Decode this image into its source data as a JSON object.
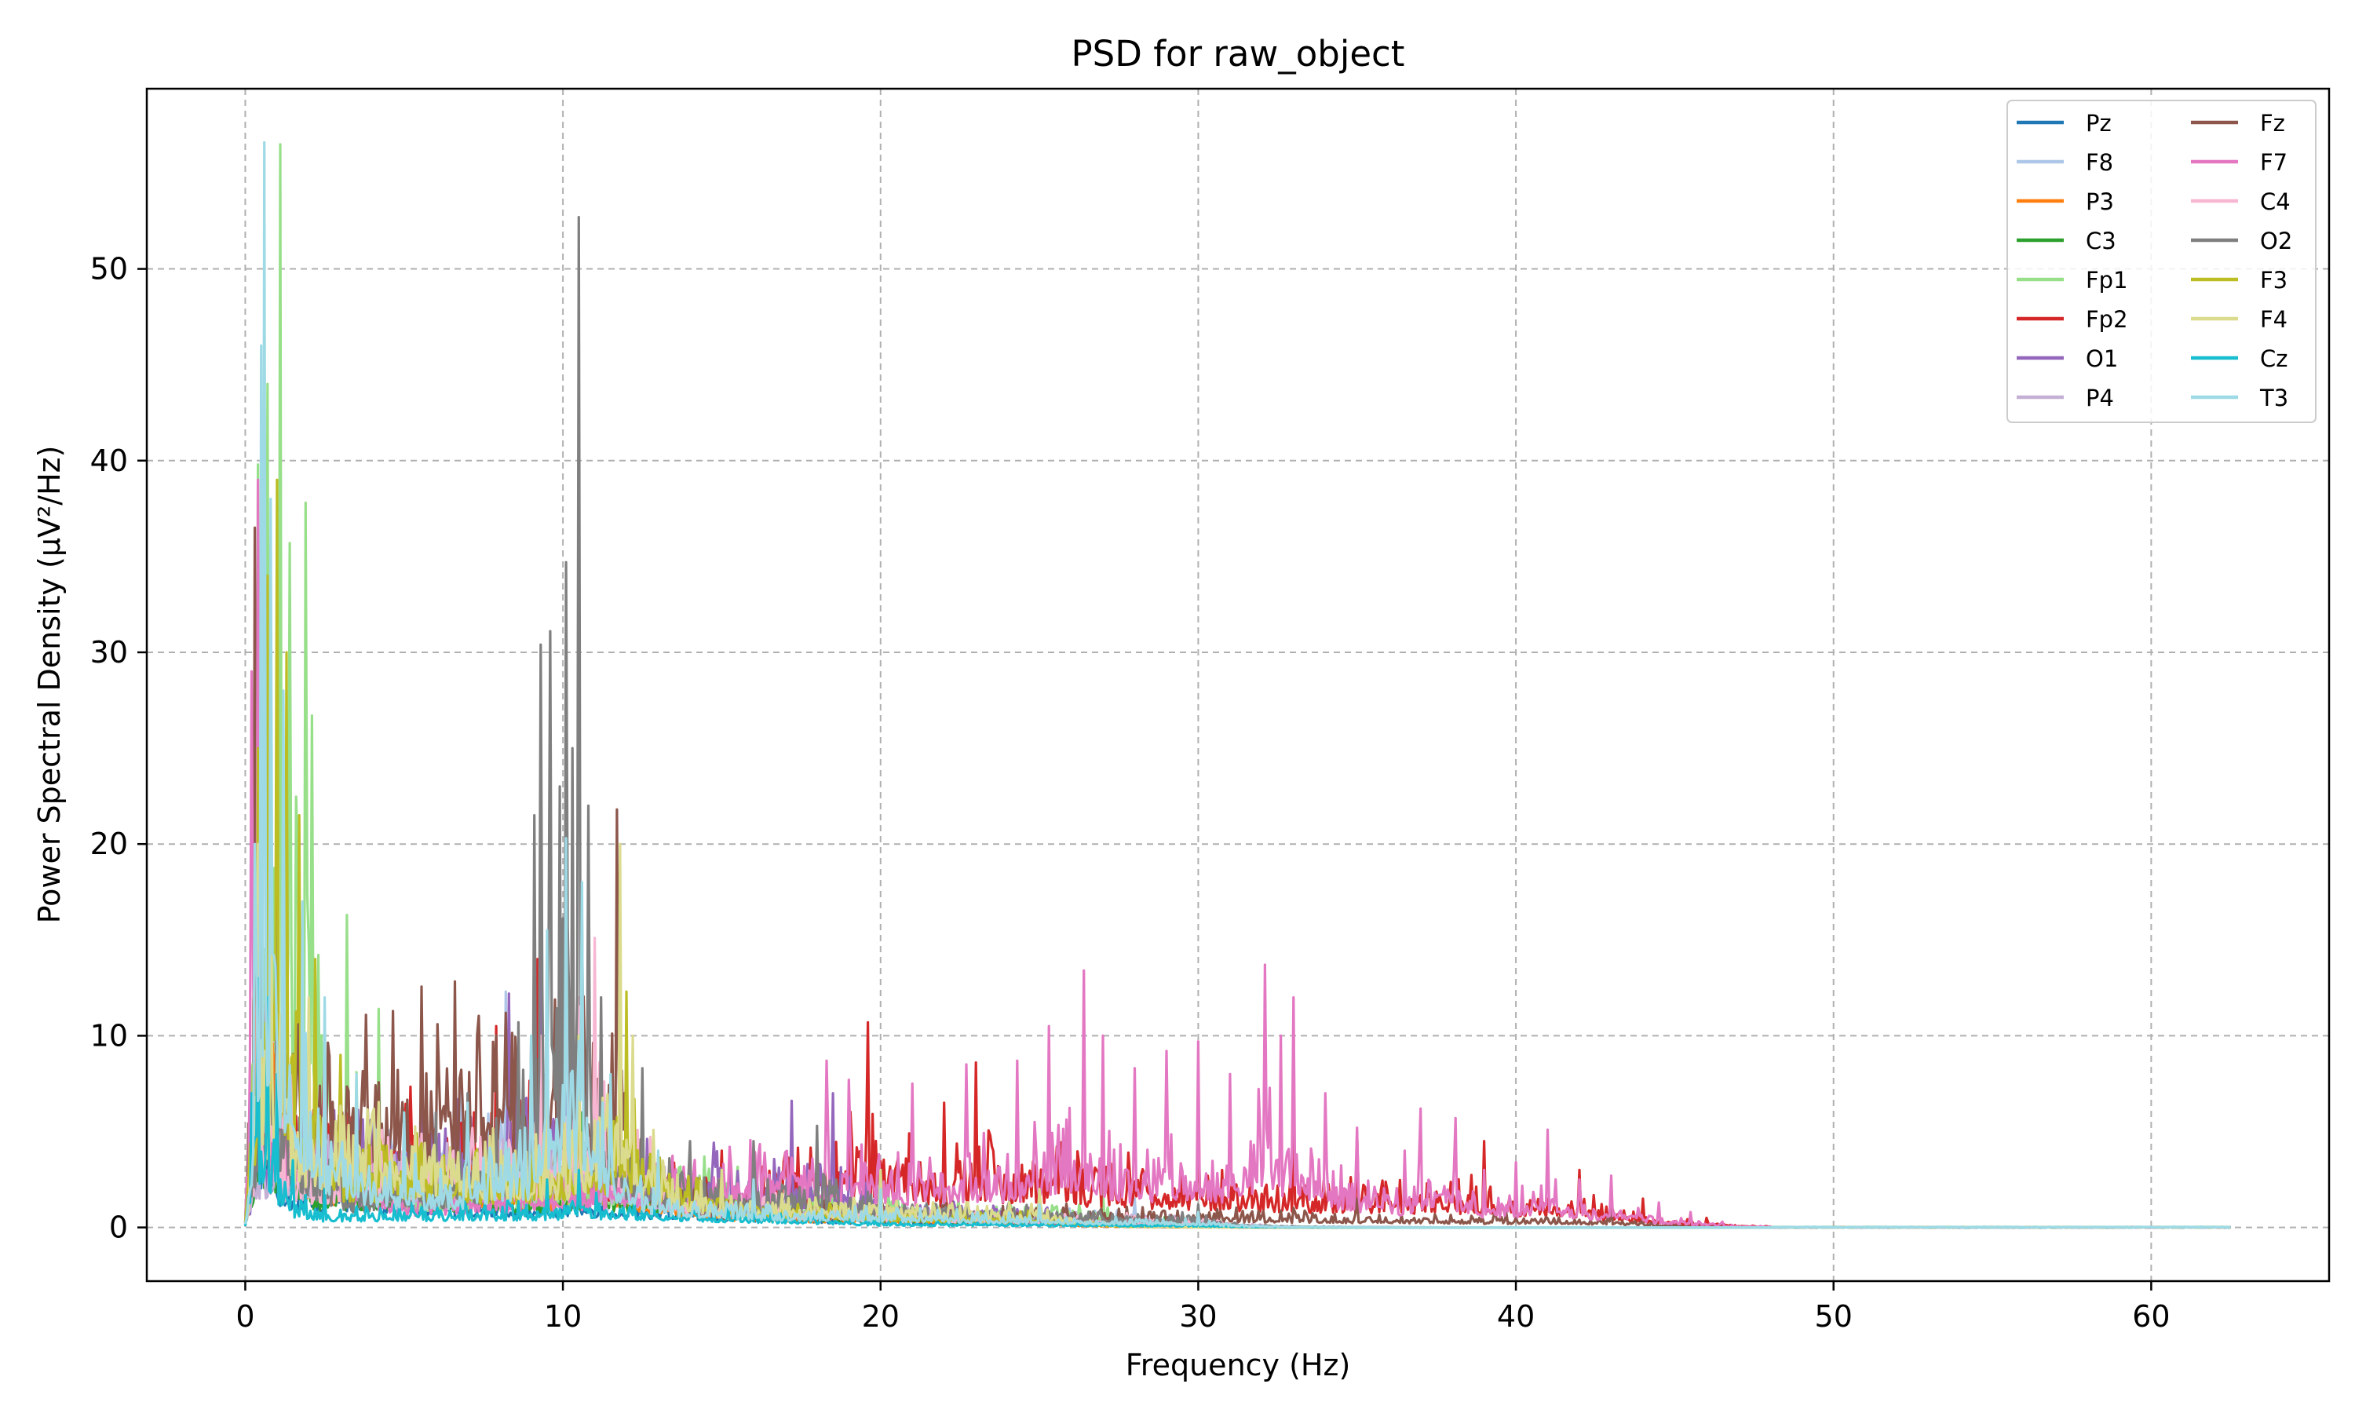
{
  "chart_data": {
    "type": "line",
    "title": "PSD for raw_object",
    "xlabel": "Frequency (Hz)",
    "ylabel": "Power Spectral Density (µV²/Hz)",
    "xlim": [
      -3.1,
      65.6
    ],
    "ylim": [
      -2.8,
      59.4
    ],
    "xticks": [
      0,
      10,
      20,
      30,
      40,
      50,
      60
    ],
    "xtick_labels": [
      "0",
      "10",
      "20",
      "30",
      "40",
      "50",
      "60"
    ],
    "yticks": [
      0,
      10,
      20,
      30,
      40,
      50
    ],
    "ytick_labels": [
      "0",
      "10",
      "20",
      "30",
      "40",
      "50"
    ],
    "x_range": [
      0,
      62.5
    ],
    "grid": true,
    "legend": {
      "position": "top-right",
      "columns": 2
    },
    "series": [
      {
        "name": "Pz",
        "color": "#1f77b4",
        "peaks": [
          [
            0.3,
            14
          ],
          [
            0.6,
            12
          ],
          [
            1.2,
            6
          ],
          [
            9.6,
            3
          ],
          [
            10.5,
            3.5
          ],
          [
            20,
            1
          ],
          [
            30,
            0.5
          ]
        ]
      },
      {
        "name": "F8",
        "color": "#aec7e8",
        "peaks": [
          [
            0.4,
            18
          ],
          [
            0.8,
            22
          ],
          [
            1.5,
            10
          ],
          [
            8.2,
            12.3
          ],
          [
            9.5,
            8
          ],
          [
            11,
            6
          ],
          [
            20,
            2
          ],
          [
            28,
            1.5
          ]
        ]
      },
      {
        "name": "P3",
        "color": "#ff7f0e",
        "peaks": [
          [
            0.5,
            16
          ],
          [
            1.0,
            18
          ],
          [
            2.0,
            8
          ],
          [
            9.8,
            6
          ],
          [
            10.4,
            8
          ],
          [
            15,
            2
          ],
          [
            25,
            1
          ]
        ]
      },
      {
        "name": "C3",
        "color": "#2ca02c",
        "peaks": [
          [
            0.5,
            14
          ],
          [
            1.0,
            12
          ],
          [
            2.0,
            6
          ],
          [
            9.6,
            5
          ],
          [
            10.6,
            6
          ],
          [
            18,
            2
          ],
          [
            30,
            0.8
          ]
        ]
      },
      {
        "name": "Fp1",
        "color": "#98df8a",
        "peaks": [
          [
            0.4,
            39.8
          ],
          [
            0.7,
            44
          ],
          [
            1.1,
            56.5
          ],
          [
            1.4,
            35.7
          ],
          [
            1.9,
            37.8
          ],
          [
            2.1,
            26.7
          ],
          [
            3.2,
            16.3
          ],
          [
            4.2,
            11.4
          ],
          [
            5.0,
            5.5
          ],
          [
            12,
            8
          ],
          [
            20,
            3
          ],
          [
            27,
            2
          ]
        ]
      },
      {
        "name": "Fp2",
        "color": "#d62728",
        "peaks": [
          [
            0.5,
            20
          ],
          [
            1.0,
            18
          ],
          [
            7.9,
            10.5
          ],
          [
            9.2,
            14
          ],
          [
            11.0,
            10
          ],
          [
            15,
            4
          ],
          [
            19.6,
            10.7
          ],
          [
            22,
            6.5
          ],
          [
            23,
            8.6
          ],
          [
            27,
            7
          ],
          [
            30,
            6
          ],
          [
            33,
            5
          ],
          [
            35,
            5
          ],
          [
            39,
            4.5
          ],
          [
            42,
            3
          ],
          [
            44,
            1.5
          ],
          [
            46,
            0.5
          ]
        ]
      },
      {
        "name": "O1",
        "color": "#9467bd",
        "peaks": [
          [
            0.5,
            12
          ],
          [
            1.0,
            10
          ],
          [
            8.3,
            12.2
          ],
          [
            9.3,
            17
          ],
          [
            10.3,
            15
          ],
          [
            11,
            8
          ],
          [
            17.2,
            6.6
          ],
          [
            18.5,
            7
          ],
          [
            20,
            3
          ],
          [
            25,
            2
          ]
        ]
      },
      {
        "name": "P4",
        "color": "#c5b0d5",
        "peaks": [
          [
            0.5,
            10
          ],
          [
            1.0,
            9
          ],
          [
            9.4,
            8
          ],
          [
            10.2,
            10
          ],
          [
            15,
            3
          ],
          [
            22,
            2
          ],
          [
            30,
            1
          ]
        ]
      },
      {
        "name": "Fz",
        "color": "#8c564b",
        "peaks": [
          [
            0.3,
            36.5
          ],
          [
            0.5,
            28
          ],
          [
            0.8,
            20
          ],
          [
            1.2,
            22
          ],
          [
            11.7,
            21.8
          ],
          [
            12.2,
            8
          ],
          [
            15,
            3
          ],
          [
            25,
            2
          ],
          [
            35,
            1.5
          ],
          [
            43,
            1
          ]
        ]
      },
      {
        "name": "F7",
        "color": "#e377c2",
        "peaks": [
          [
            0.2,
            29
          ],
          [
            0.4,
            39
          ],
          [
            0.7,
            22
          ],
          [
            1.2,
            14
          ],
          [
            5,
            4
          ],
          [
            18.3,
            8.7
          ],
          [
            19.0,
            7.7
          ],
          [
            21,
            7.5
          ],
          [
            22.7,
            8.5
          ],
          [
            24.3,
            8.7
          ],
          [
            25.3,
            10.5
          ],
          [
            26.4,
            13.4
          ],
          [
            27,
            10
          ],
          [
            28,
            8.3
          ],
          [
            29,
            9.2
          ],
          [
            30,
            9.7
          ],
          [
            31,
            8
          ],
          [
            32.1,
            13.7
          ],
          [
            32.6,
            10
          ],
          [
            33,
            12
          ],
          [
            34,
            7
          ],
          [
            35,
            5.2
          ],
          [
            36.5,
            4
          ],
          [
            37,
            6.2
          ],
          [
            38.1,
            5.7
          ],
          [
            39,
            3
          ],
          [
            40,
            3.4
          ],
          [
            41,
            5.1
          ],
          [
            42,
            2.5
          ],
          [
            43,
            2.7
          ],
          [
            44.5,
            1.3
          ],
          [
            45.5,
            0.8
          ],
          [
            46.5,
            0.3
          ]
        ]
      },
      {
        "name": "C4",
        "color": "#f7b6d2",
        "peaks": [
          [
            0.5,
            18
          ],
          [
            1.0,
            14
          ],
          [
            1.5,
            8
          ],
          [
            9.3,
            10
          ],
          [
            10.5,
            12
          ],
          [
            11,
            15.1
          ],
          [
            14,
            4
          ],
          [
            20,
            2
          ],
          [
            30,
            1
          ]
        ]
      },
      {
        "name": "O2",
        "color": "#7f7f7f",
        "peaks": [
          [
            0.5,
            22
          ],
          [
            1.0,
            16
          ],
          [
            3,
            5
          ],
          [
            6,
            6
          ],
          [
            7,
            7
          ],
          [
            8.6,
            10.7
          ],
          [
            9.1,
            21.5
          ],
          [
            9.3,
            30.4
          ],
          [
            9.6,
            31.1
          ],
          [
            9.9,
            23
          ],
          [
            10.1,
            34.7
          ],
          [
            10.3,
            25
          ],
          [
            10.5,
            52.7
          ],
          [
            10.8,
            22
          ],
          [
            11.2,
            12
          ],
          [
            12.5,
            8.3
          ],
          [
            14,
            4.5
          ],
          [
            16,
            4.5
          ],
          [
            18,
            5.3
          ],
          [
            20,
            3
          ],
          [
            25,
            2
          ],
          [
            30,
            1.2
          ]
        ]
      },
      {
        "name": "F3",
        "color": "#bcbd22",
        "peaks": [
          [
            0.4,
            25
          ],
          [
            0.7,
            34
          ],
          [
            1.0,
            39
          ],
          [
            1.3,
            30
          ],
          [
            1.7,
            21.5
          ],
          [
            2.2,
            14
          ],
          [
            3.0,
            9
          ],
          [
            9.5,
            8
          ],
          [
            10.5,
            10
          ],
          [
            12,
            12.3
          ],
          [
            15,
            3
          ],
          [
            20,
            2
          ],
          [
            25,
            1.5
          ]
        ]
      },
      {
        "name": "F4",
        "color": "#dbdb8d",
        "peaks": [
          [
            0.4,
            20
          ],
          [
            0.8,
            24
          ],
          [
            1.2,
            18
          ],
          [
            2.0,
            12
          ],
          [
            9.5,
            9
          ],
          [
            10.5,
            10
          ],
          [
            11.8,
            20
          ],
          [
            12.2,
            10
          ],
          [
            15,
            3
          ],
          [
            20,
            3
          ],
          [
            25,
            2
          ]
        ]
      },
      {
        "name": "Cz",
        "color": "#17becf",
        "peaks": [
          [
            0.2,
            7
          ],
          [
            0.4,
            13
          ],
          [
            0.7,
            12
          ],
          [
            1.0,
            8
          ],
          [
            1.5,
            3.5
          ],
          [
            2.5,
            2
          ],
          [
            9.5,
            2.5
          ],
          [
            10.5,
            3
          ],
          [
            20,
            0.6
          ],
          [
            30,
            0.3
          ]
        ]
      },
      {
        "name": "T3",
        "color": "#9edae5",
        "peaks": [
          [
            0.3,
            20
          ],
          [
            0.5,
            46
          ],
          [
            0.6,
            56.6
          ],
          [
            0.8,
            38
          ],
          [
            1.2,
            28
          ],
          [
            1.8,
            17
          ],
          [
            2.5,
            12
          ],
          [
            3.5,
            8
          ],
          [
            5,
            6
          ],
          [
            7,
            6.5
          ],
          [
            9,
            10
          ],
          [
            9.5,
            15.5
          ],
          [
            10.1,
            20.3
          ],
          [
            10.6,
            18
          ],
          [
            11.5,
            8
          ],
          [
            13,
            4
          ],
          [
            16,
            2.5
          ],
          [
            20,
            2
          ],
          [
            25,
            1.2
          ],
          [
            30,
            0.8
          ]
        ]
      }
    ]
  }
}
